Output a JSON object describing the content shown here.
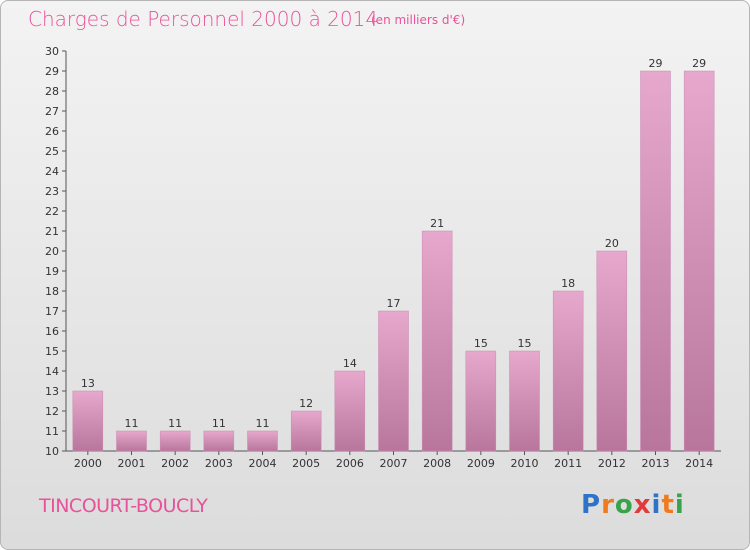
{
  "header": {
    "title": "Charges de Personnel 2000 à 2014",
    "subtitle": "(en milliers d'€)"
  },
  "footer": {
    "location": "TINCOURT-BOUCLY",
    "logo_letters": [
      "P",
      "r",
      "o",
      "x",
      "i",
      "t",
      "i"
    ],
    "logo_colors": [
      "#2d73c8",
      "#f07a1e",
      "#3aa24a",
      "#e23a3a",
      "#2d73c8",
      "#f07a1e",
      "#3aa24a"
    ]
  },
  "chart_data": {
    "type": "bar",
    "categories": [
      "2000",
      "2001",
      "2002",
      "2003",
      "2004",
      "2005",
      "2006",
      "2007",
      "2008",
      "2009",
      "2010",
      "2011",
      "2012",
      "2013",
      "2014"
    ],
    "values": [
      13,
      11,
      11,
      11,
      11,
      12,
      14,
      17,
      21,
      15,
      15,
      18,
      20,
      29,
      29
    ],
    "value_labels": [
      "13",
      "11",
      "11",
      "11",
      "11",
      "12",
      "14",
      "17",
      "21",
      "15",
      "15",
      "18",
      "20",
      "29",
      "29"
    ],
    "title": "Charges de Personnel 2000 à 2014",
    "xlabel": "",
    "ylabel": "",
    "ylim": [
      10,
      30
    ],
    "yticks": [
      "10",
      "11",
      "12",
      "13",
      "14",
      "15",
      "16",
      "17",
      "18",
      "19",
      "20",
      "21",
      "22",
      "23",
      "24",
      "25",
      "26",
      "27",
      "28",
      "29",
      "30"
    ],
    "grid": false,
    "bar_color_top": "#e6a8cc",
    "bar_color_bottom": "#b8769c"
  }
}
